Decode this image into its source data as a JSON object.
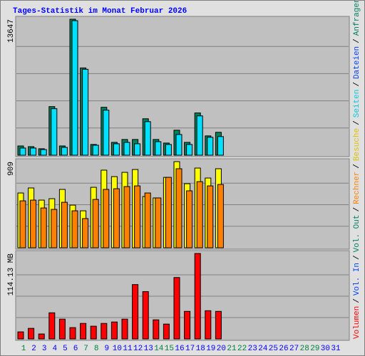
{
  "title": "Tages-Statistik im Monat Februar 2026",
  "legend_separator": "/",
  "legend": [
    {
      "label": "Volumen",
      "color": "#ff0000"
    },
    {
      "label": "Vol. In",
      "color": "#0040ff"
    },
    {
      "label": "Vol. Out",
      "color": "#008060"
    },
    {
      "label": "Rechner",
      "color": "#ff8000"
    },
    {
      "label": "Besuche",
      "color": "#e0c000"
    },
    {
      "label": "Seiten",
      "color": "#00c8e0"
    },
    {
      "label": "Dateien",
      "color": "#0040ff"
    },
    {
      "label": "Anfragen",
      "color": "#008060"
    }
  ],
  "chart_data": [
    {
      "type": "bar",
      "ylim": [
        0,
        13647
      ],
      "yticks": [
        13647
      ],
      "grid_divisions": 5,
      "series": [
        {
          "color": "#00805c",
          "values": [
            930,
            860,
            650,
            4880,
            930,
            13647,
            8760,
            1080,
            4810,
            1290,
            1580,
            1580,
            3660,
            1580,
            1220,
            2510,
            1290,
            4240,
            1940,
            2300,
            null,
            null,
            null,
            null,
            null,
            null,
            null,
            null,
            null,
            null,
            null
          ]
        },
        {
          "color": "#00e0ff",
          "values": [
            720,
            720,
            570,
            4670,
            790,
            13500,
            8620,
            1005,
            4520,
            1150,
            1290,
            1150,
            3370,
            1360,
            1080,
            2080,
            1080,
            3950,
            1800,
            1870,
            null,
            null,
            null,
            null,
            null,
            null,
            null,
            null,
            null,
            null,
            null
          ]
        }
      ]
    },
    {
      "type": "bar",
      "ylim": [
        0,
        909
      ],
      "yticks": [
        909
      ],
      "grid_divisions": 4,
      "series": [
        {
          "color": "#ffff00",
          "values": [
            578,
            631,
            503,
            518,
            616,
            450,
            390,
            638,
            819,
            751,
            796,
            826,
            541,
            526,
            743,
            909,
            676,
            841,
            736,
            834,
            null,
            null,
            null,
            null,
            null,
            null,
            null,
            null,
            null,
            null,
            null
          ]
        },
        {
          "color": "#ff8000",
          "values": [
            495,
            503,
            420,
            405,
            480,
            390,
            308,
            510,
            616,
            623,
            646,
            653,
            578,
            526,
            743,
            834,
            601,
            698,
            653,
            668,
            null,
            null,
            null,
            null,
            null,
            null,
            null,
            null,
            null,
            null,
            null
          ]
        }
      ]
    },
    {
      "type": "bar",
      "ylim": [
        0,
        114.13
      ],
      "yticks": [
        {
          "value": 114.13,
          "label": "114.13 MB"
        }
      ],
      "grid_divisions": 4,
      "categories": [
        "1",
        "2",
        "3",
        "4",
        "5",
        "6",
        "7",
        "8",
        "9",
        "10",
        "11",
        "12",
        "13",
        "14",
        "15",
        "16",
        "17",
        "18",
        "19",
        "20",
        "21",
        "22",
        "23",
        "24",
        "25",
        "26",
        "27",
        "28",
        "29",
        "30",
        "31"
      ],
      "category_colors": [
        "#008040",
        "#0000ff",
        "#0000ff",
        "#0000ff",
        "#0000ff",
        "#0000ff",
        "#008040",
        "#008040",
        "#0000ff",
        "#0000ff",
        "#0000ff",
        "#0000ff",
        "#0000ff",
        "#008040",
        "#008040",
        "#0000ff",
        "#0000ff",
        "#0000ff",
        "#0000ff",
        "#0000ff",
        "#008040",
        "#008040",
        "#0000ff",
        "#0000ff",
        "#0000ff",
        "#0000ff",
        "#0000ff",
        "#008040",
        "#008040",
        "#0000ff",
        "#0000ff"
      ],
      "series": [
        {
          "color": "#ff0000",
          "values": [
            9.4,
            14.1,
            6.6,
            34.9,
            26.4,
            15.1,
            20.7,
            17,
            20.7,
            22.6,
            26.4,
            72.6,
            63.2,
            25.5,
            19.8,
            82,
            36.8,
            114.13,
            37.7,
            36.8,
            null,
            null,
            null,
            null,
            null,
            null,
            null,
            null,
            null,
            null,
            null
          ]
        }
      ]
    }
  ]
}
